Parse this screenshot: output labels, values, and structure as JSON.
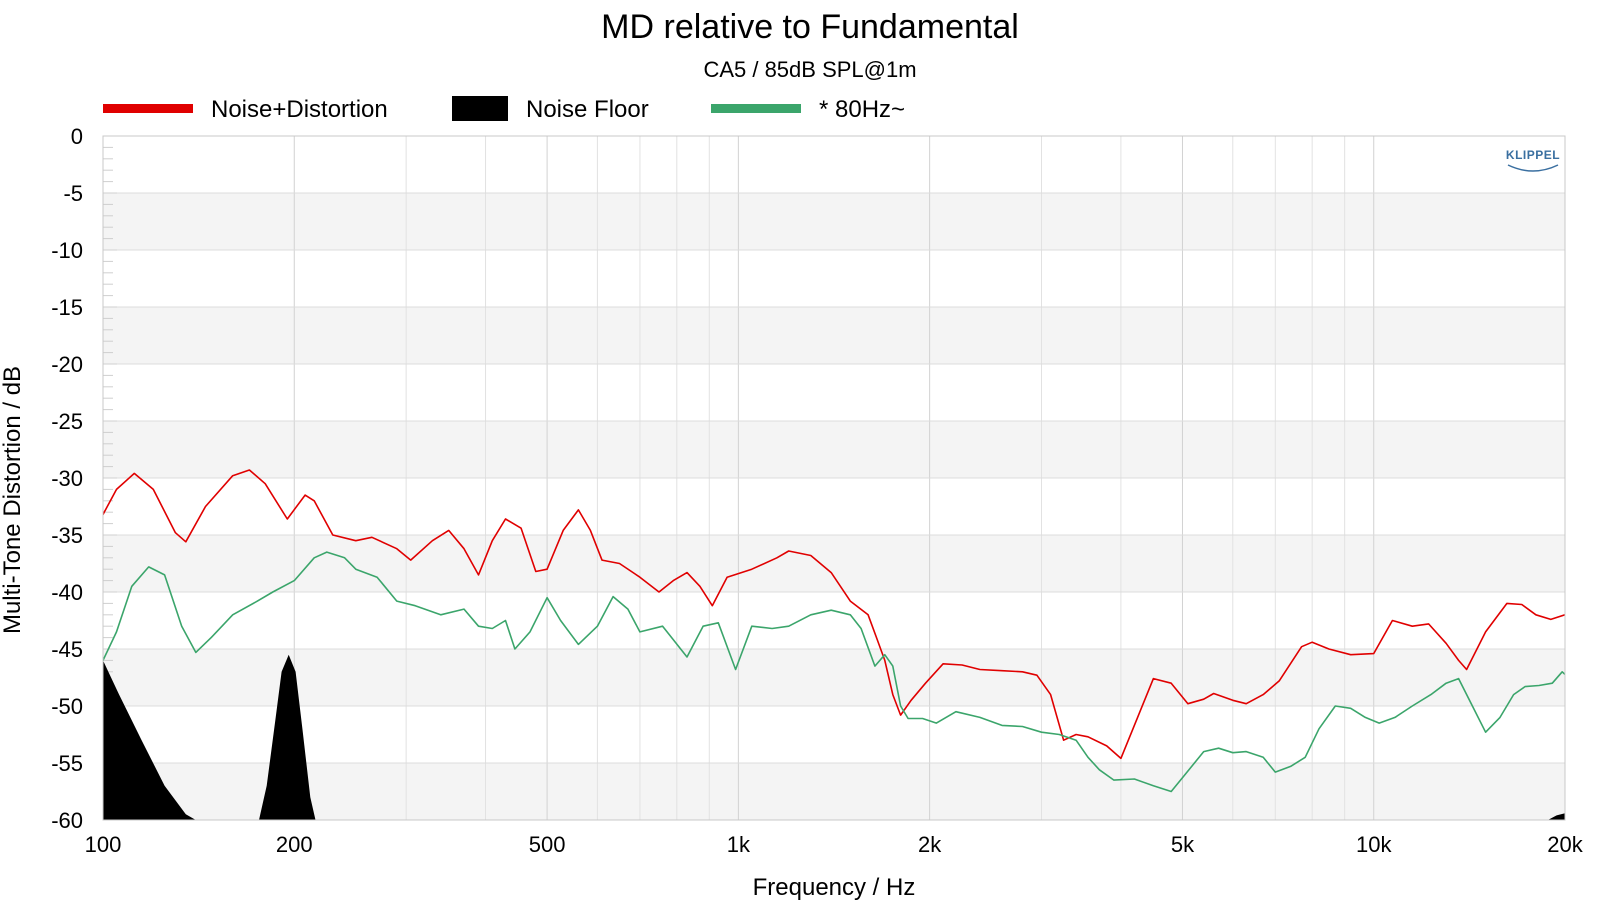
{
  "chart_data": {
    "type": "line",
    "title": "MD relative to Fundamental",
    "subtitle": "CA5 / 85dB SPL@1m",
    "xlabel": "Frequency / Hz",
    "ylabel": "Multi-Tone Distortion / dB",
    "x_scale": "log",
    "xlim": [
      100,
      20000
    ],
    "ylim": [
      -60,
      0
    ],
    "x_ticks": [
      100,
      200,
      500,
      1000,
      2000,
      5000,
      10000,
      20000
    ],
    "x_tick_labels": [
      "100",
      "200",
      "500",
      "1k",
      "2k",
      "5k",
      "10k",
      "20k"
    ],
    "y_ticks": [
      0,
      -5,
      -10,
      -15,
      -20,
      -25,
      -30,
      -35,
      -40,
      -45,
      -50,
      -55,
      -60
    ],
    "y_tick_labels": [
      "0",
      "-5",
      "-10",
      "-15",
      "-20",
      "-25",
      "-30",
      "-35",
      "-40",
      "-45",
      "-50",
      "-55",
      "-60"
    ],
    "grid": true,
    "legend_position": "top-left",
    "logo": "KLIPPEL",
    "series": [
      {
        "name": "Noise+Distortion",
        "kind": "line",
        "color": "#e00000",
        "points": [
          [
            100,
            -33.2
          ],
          [
            105,
            -31.0
          ],
          [
            112,
            -29.6
          ],
          [
            120,
            -31.0
          ],
          [
            130,
            -34.8
          ],
          [
            135,
            -35.6
          ],
          [
            145,
            -32.5
          ],
          [
            160,
            -29.8
          ],
          [
            170,
            -29.3
          ],
          [
            180,
            -30.5
          ],
          [
            195,
            -33.6
          ],
          [
            208,
            -31.5
          ],
          [
            215,
            -32.0
          ],
          [
            230,
            -35.0
          ],
          [
            250,
            -35.5
          ],
          [
            265,
            -35.2
          ],
          [
            290,
            -36.2
          ],
          [
            305,
            -37.2
          ],
          [
            330,
            -35.5
          ],
          [
            350,
            -34.6
          ],
          [
            370,
            -36.2
          ],
          [
            390,
            -38.5
          ],
          [
            410,
            -35.5
          ],
          [
            430,
            -33.6
          ],
          [
            455,
            -34.4
          ],
          [
            480,
            -38.2
          ],
          [
            500,
            -38.0
          ],
          [
            530,
            -34.6
          ],
          [
            560,
            -32.8
          ],
          [
            585,
            -34.6
          ],
          [
            610,
            -37.2
          ],
          [
            650,
            -37.5
          ],
          [
            700,
            -38.7
          ],
          [
            750,
            -40.0
          ],
          [
            790,
            -39.0
          ],
          [
            830,
            -38.3
          ],
          [
            870,
            -39.5
          ],
          [
            910,
            -41.2
          ],
          [
            960,
            -38.7
          ],
          [
            1050,
            -38.0
          ],
          [
            1150,
            -37.0
          ],
          [
            1200,
            -36.4
          ],
          [
            1300,
            -36.8
          ],
          [
            1400,
            -38.3
          ],
          [
            1500,
            -40.8
          ],
          [
            1600,
            -42.0
          ],
          [
            1650,
            -44.0
          ],
          [
            1700,
            -46.0
          ],
          [
            1750,
            -49.0
          ],
          [
            1800,
            -50.8
          ],
          [
            1870,
            -49.5
          ],
          [
            1970,
            -48.0
          ],
          [
            2100,
            -46.3
          ],
          [
            2250,
            -46.4
          ],
          [
            2400,
            -46.8
          ],
          [
            2600,
            -46.9
          ],
          [
            2800,
            -47.0
          ],
          [
            2950,
            -47.3
          ],
          [
            3100,
            -49.0
          ],
          [
            3250,
            -53.0
          ],
          [
            3400,
            -52.5
          ],
          [
            3550,
            -52.7
          ],
          [
            3800,
            -53.5
          ],
          [
            4000,
            -54.6
          ],
          [
            4250,
            -51.0
          ],
          [
            4500,
            -47.6
          ],
          [
            4800,
            -48.0
          ],
          [
            5100,
            -49.8
          ],
          [
            5400,
            -49.4
          ],
          [
            5600,
            -48.9
          ],
          [
            6000,
            -49.5
          ],
          [
            6300,
            -49.8
          ],
          [
            6700,
            -49.0
          ],
          [
            7100,
            -47.8
          ],
          [
            7700,
            -44.8
          ],
          [
            8000,
            -44.4
          ],
          [
            8500,
            -45.0
          ],
          [
            9200,
            -45.5
          ],
          [
            10000,
            -45.4
          ],
          [
            10700,
            -42.5
          ],
          [
            11500,
            -43.0
          ],
          [
            12200,
            -42.8
          ],
          [
            13000,
            -44.5
          ],
          [
            13600,
            -46.0
          ],
          [
            14000,
            -46.8
          ],
          [
            15000,
            -43.5
          ],
          [
            16200,
            -41.0
          ],
          [
            17100,
            -41.1
          ],
          [
            18000,
            -42.0
          ],
          [
            19000,
            -42.4
          ],
          [
            20000,
            -42.0
          ],
          [
            21000,
            -42.7
          ],
          [
            22500,
            -44.0
          ]
        ]
      },
      {
        "name": "Noise Floor",
        "kind": "area",
        "color": "#000000",
        "points": [
          [
            100,
            -46.0
          ],
          [
            106,
            -49.0
          ],
          [
            115,
            -53.0
          ],
          [
            125,
            -57.0
          ],
          [
            135,
            -59.5
          ],
          [
            140,
            -60.0
          ],
          [
            176,
            -60.0
          ],
          [
            181,
            -57.0
          ],
          [
            187,
            -51.0
          ],
          [
            191,
            -47.0
          ],
          [
            196,
            -45.5
          ],
          [
            201,
            -47.0
          ],
          [
            206,
            -52.0
          ],
          [
            212,
            -58.0
          ],
          [
            216,
            -60.0
          ],
          [
            18800,
            -60.0
          ],
          [
            19400,
            -59.6
          ],
          [
            20000,
            -59.4
          ],
          [
            20500,
            -59.6
          ],
          [
            21300,
            -59.2
          ],
          [
            22000,
            -58.3
          ],
          [
            22500,
            -57.8
          ]
        ]
      },
      {
        "name": "* 80Hz~",
        "kind": "line",
        "color": "#3ba56b",
        "points": [
          [
            100,
            -46.0
          ],
          [
            105,
            -43.5
          ],
          [
            111,
            -39.5
          ],
          [
            118,
            -37.8
          ],
          [
            125,
            -38.5
          ],
          [
            133,
            -43.0
          ],
          [
            140,
            -45.3
          ],
          [
            148,
            -44.0
          ],
          [
            160,
            -42.0
          ],
          [
            175,
            -40.8
          ],
          [
            185,
            -40.0
          ],
          [
            200,
            -39.0
          ],
          [
            215,
            -37.0
          ],
          [
            225,
            -36.5
          ],
          [
            240,
            -37.0
          ],
          [
            250,
            -38.0
          ],
          [
            270,
            -38.7
          ],
          [
            290,
            -40.8
          ],
          [
            310,
            -41.2
          ],
          [
            340,
            -42.0
          ],
          [
            370,
            -41.5
          ],
          [
            390,
            -43.0
          ],
          [
            410,
            -43.2
          ],
          [
            430,
            -42.5
          ],
          [
            445,
            -45.0
          ],
          [
            470,
            -43.5
          ],
          [
            500,
            -40.5
          ],
          [
            525,
            -42.5
          ],
          [
            560,
            -44.6
          ],
          [
            600,
            -43.0
          ],
          [
            635,
            -40.4
          ],
          [
            670,
            -41.5
          ],
          [
            700,
            -43.5
          ],
          [
            760,
            -43.0
          ],
          [
            830,
            -45.7
          ],
          [
            880,
            -43.0
          ],
          [
            930,
            -42.7
          ],
          [
            990,
            -46.8
          ],
          [
            1050,
            -43.0
          ],
          [
            1130,
            -43.2
          ],
          [
            1200,
            -43.0
          ],
          [
            1300,
            -42.0
          ],
          [
            1400,
            -41.6
          ],
          [
            1500,
            -42.0
          ],
          [
            1560,
            -43.2
          ],
          [
            1640,
            -46.5
          ],
          [
            1700,
            -45.5
          ],
          [
            1750,
            -46.5
          ],
          [
            1800,
            -50.0
          ],
          [
            1850,
            -51.1
          ],
          [
            1950,
            -51.1
          ],
          [
            2050,
            -51.5
          ],
          [
            2200,
            -50.5
          ],
          [
            2400,
            -51.0
          ],
          [
            2600,
            -51.7
          ],
          [
            2800,
            -51.8
          ],
          [
            3000,
            -52.3
          ],
          [
            3200,
            -52.5
          ],
          [
            3400,
            -53.0
          ],
          [
            3550,
            -54.5
          ],
          [
            3700,
            -55.6
          ],
          [
            3900,
            -56.5
          ],
          [
            4200,
            -56.4
          ],
          [
            4500,
            -57.0
          ],
          [
            4800,
            -57.5
          ],
          [
            5050,
            -56.0
          ],
          [
            5400,
            -54.0
          ],
          [
            5700,
            -53.7
          ],
          [
            6000,
            -54.1
          ],
          [
            6300,
            -54.0
          ],
          [
            6700,
            -54.5
          ],
          [
            7000,
            -55.8
          ],
          [
            7400,
            -55.3
          ],
          [
            7800,
            -54.5
          ],
          [
            8200,
            -52.0
          ],
          [
            8700,
            -50.0
          ],
          [
            9200,
            -50.2
          ],
          [
            9700,
            -51.0
          ],
          [
            10200,
            -51.5
          ],
          [
            10800,
            -51.0
          ],
          [
            11500,
            -50.0
          ],
          [
            12300,
            -49.0
          ],
          [
            13000,
            -48.0
          ],
          [
            13600,
            -47.6
          ],
          [
            14300,
            -50.0
          ],
          [
            15000,
            -52.3
          ],
          [
            15800,
            -51.0
          ],
          [
            16600,
            -49.0
          ],
          [
            17300,
            -48.3
          ],
          [
            18200,
            -48.2
          ],
          [
            19100,
            -48.0
          ],
          [
            19800,
            -47.0
          ],
          [
            20500,
            -47.8
          ],
          [
            21200,
            -48.3
          ],
          [
            21900,
            -47.5
          ],
          [
            22500,
            -47.2
          ]
        ]
      }
    ]
  }
}
